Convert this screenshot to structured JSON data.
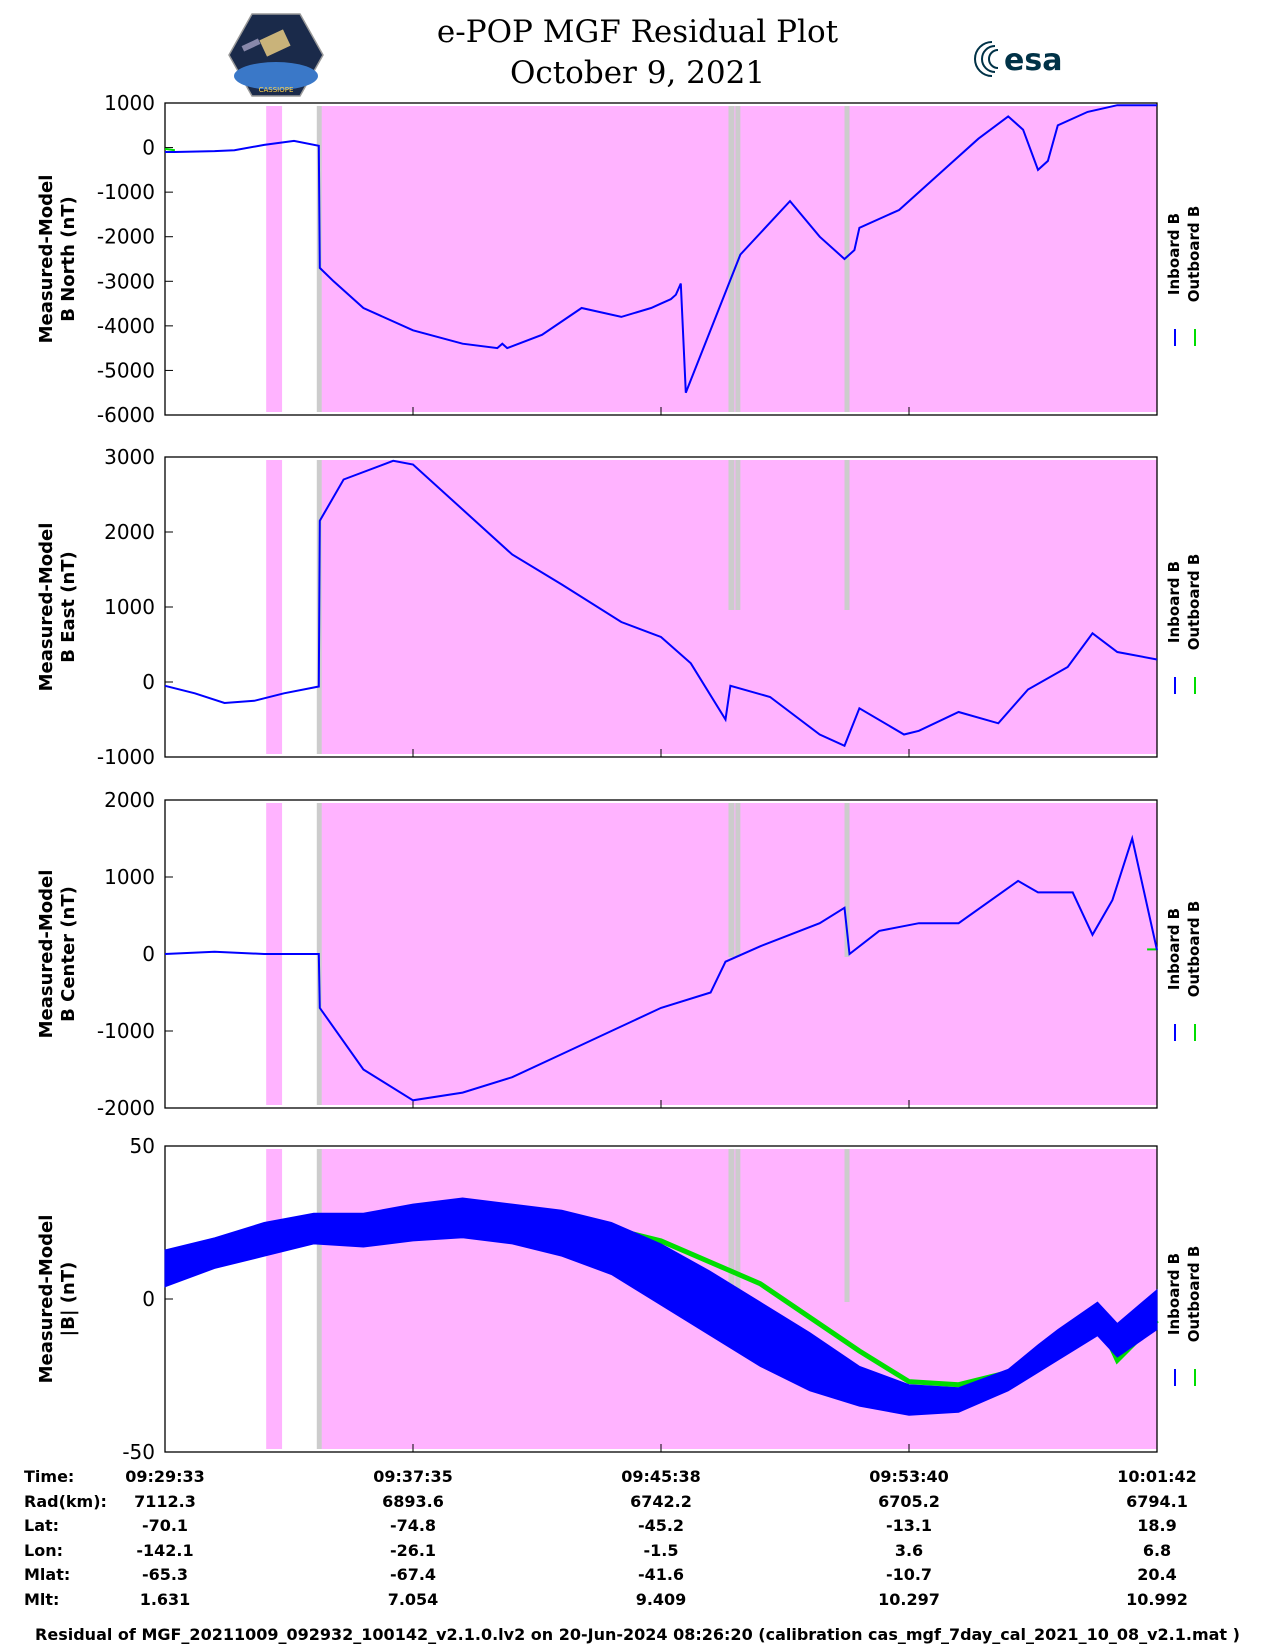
{
  "header": {
    "title_line1": "e-POP MGF Residual Plot",
    "title_line2": "October 9, 2021",
    "logo_left_text": "CASSIOPE",
    "logo_right_text": "esa"
  },
  "colors": {
    "inboard": "#0000ff",
    "outboard": "#00dd00",
    "background_shade": "#ffb3ff",
    "gap_shade": "#cccccc"
  },
  "chart_data": [
    {
      "type": "line",
      "ylabel": [
        "Measured-Model",
        "B North (nT)"
      ],
      "ylim": [
        -6000,
        1000
      ],
      "yticks": [
        "1000",
        "0",
        "-1000",
        "-2000",
        "-3000",
        "-4000",
        "-5000",
        "-6000"
      ],
      "ytick_values": [
        1000,
        0,
        -1000,
        -2000,
        -3000,
        -4000,
        -5000,
        -6000
      ],
      "legend": [
        "Inboard B",
        "Outboard B"
      ],
      "series": [
        {
          "name": "Inboard B",
          "x": [
            0,
            0.01,
            0.05,
            0.07,
            0.1,
            0.13,
            0.155,
            0.156,
            0.17,
            0.2,
            0.25,
            0.3,
            0.335,
            0.34,
            0.345,
            0.38,
            0.42,
            0.46,
            0.49,
            0.5,
            0.51,
            0.515,
            0.52,
            0.525,
            0.58,
            0.63,
            0.66,
            0.685,
            0.695,
            0.7,
            0.74,
            0.79,
            0.82,
            0.85,
            0.865,
            0.88,
            0.89,
            0.9,
            0.93,
            0.96,
            1.0
          ],
          "values": [
            -100,
            -100,
            -80,
            -60,
            60,
            150,
            40,
            -2700,
            -3000,
            -3600,
            -4100,
            -4400,
            -4500,
            -4400,
            -4500,
            -4200,
            -3600,
            -3800,
            -3600,
            -3500,
            -3400,
            -3300,
            -3050,
            -5500,
            -2400,
            -1200,
            -2000,
            -2500,
            -2300,
            -1800,
            -1400,
            -400,
            200,
            700,
            400,
            -500,
            -300,
            500,
            800,
            950,
            950
          ]
        },
        {
          "name": "Outboard B",
          "x": [
            0,
            0.01
          ],
          "values": [
            -30,
            -60
          ]
        }
      ]
    },
    {
      "type": "line",
      "ylabel": [
        "Measured-Model",
        "B East (nT)"
      ],
      "ylim": [
        -1000,
        3000
      ],
      "yticks": [
        "3000",
        "2000",
        "1000",
        "0",
        "-1000"
      ],
      "ytick_values": [
        3000,
        2000,
        1000,
        0,
        -1000
      ],
      "legend": [
        "Inboard B",
        "Outboard B"
      ],
      "series": [
        {
          "name": "Inboard B",
          "x": [
            0,
            0.03,
            0.06,
            0.09,
            0.12,
            0.155,
            0.156,
            0.18,
            0.23,
            0.25,
            0.3,
            0.35,
            0.4,
            0.46,
            0.5,
            0.53,
            0.565,
            0.57,
            0.61,
            0.66,
            0.685,
            0.7,
            0.745,
            0.76,
            0.8,
            0.84,
            0.87,
            0.91,
            0.935,
            0.96,
            1.0
          ],
          "values": [
            -50,
            -150,
            -280,
            -250,
            -150,
            -60,
            2150,
            2700,
            2950,
            2900,
            2300,
            1700,
            1300,
            800,
            600,
            250,
            -500,
            -50,
            -200,
            -700,
            -850,
            -350,
            -700,
            -650,
            -400,
            -550,
            -100,
            200,
            650,
            400,
            300
          ]
        },
        {
          "name": "Outboard B",
          "x": [
            0.0
          ],
          "values": [
            -50
          ]
        }
      ]
    },
    {
      "type": "line",
      "ylabel": [
        "Measured-Model",
        "B Center (nT)"
      ],
      "ylim": [
        -2000,
        2000
      ],
      "yticks": [
        "2000",
        "1000",
        "0",
        "-1000",
        "-2000"
      ],
      "ytick_values": [
        2000,
        1000,
        0,
        -1000,
        -2000
      ],
      "legend": [
        "Inboard B",
        "Outboard B"
      ],
      "series": [
        {
          "name": "Inboard B",
          "x": [
            0,
            0.05,
            0.1,
            0.155,
            0.156,
            0.2,
            0.25,
            0.3,
            0.35,
            0.4,
            0.45,
            0.5,
            0.55,
            0.565,
            0.6,
            0.66,
            0.685,
            0.69,
            0.72,
            0.76,
            0.8,
            0.86,
            0.88,
            0.915,
            0.935,
            0.955,
            0.975,
            1.0
          ],
          "values": [
            0,
            30,
            0,
            0,
            -700,
            -1500,
            -1900,
            -1800,
            -1600,
            -1300,
            -1000,
            -700,
            -500,
            -100,
            100,
            400,
            600,
            0,
            300,
            400,
            400,
            950,
            800,
            800,
            250,
            700,
            1500,
            50
          ]
        },
        {
          "name": "Outboard B",
          "x": [
            0.99,
            1.0
          ],
          "values": [
            60,
            60
          ]
        }
      ]
    },
    {
      "type": "area",
      "ylabel": [
        "Measured-Model",
        "|B| (nT)"
      ],
      "ylim": [
        -50,
        50
      ],
      "yticks": [
        "50",
        "0",
        "-50"
      ],
      "ytick_values": [
        50,
        0,
        -50
      ],
      "legend": [
        "Inboard B",
        "Outboard B"
      ],
      "series": [
        {
          "name": "Inboard B",
          "x": [
            0,
            0.05,
            0.1,
            0.15,
            0.2,
            0.25,
            0.3,
            0.35,
            0.4,
            0.45,
            0.5,
            0.55,
            0.6,
            0.65,
            0.7,
            0.75,
            0.8,
            0.85,
            0.88,
            0.9,
            0.94,
            0.96,
            1.0
          ],
          "upper": [
            16,
            20,
            25,
            28,
            28,
            31,
            33,
            31,
            29,
            25,
            18,
            9,
            -1,
            -11,
            -22,
            -28,
            -29,
            -23,
            -15,
            -10,
            -1,
            -8,
            3
          ],
          "lower": [
            4,
            10,
            14,
            18,
            17,
            19,
            20,
            18,
            14,
            8,
            -2,
            -12,
            -22,
            -30,
            -35,
            -38,
            -37,
            -30,
            -24,
            -20,
            -12,
            -19,
            -10
          ]
        },
        {
          "name": "Outboard B",
          "x": [
            0.4,
            0.5,
            0.6,
            0.7,
            0.75,
            0.8,
            0.85,
            0.9,
            0.94,
            0.96,
            1.0
          ],
          "upper": [
            27,
            19,
            5,
            -17,
            -27,
            -28,
            -24,
            -13,
            -6,
            -20,
            -7
          ],
          "lower": [
            27,
            19,
            5,
            -17,
            -27,
            -28,
            -24,
            -13,
            -6,
            -20,
            -7
          ]
        }
      ]
    }
  ],
  "shading": {
    "pink_intervals": [
      [
        0.102,
        0.118
      ],
      [
        0.155,
        1.0
      ]
    ],
    "gray_intervals": [
      [
        0.153,
        0.158
      ],
      [
        0.568,
        0.574
      ],
      [
        0.575,
        0.58
      ],
      [
        0.685,
        0.69
      ]
    ]
  },
  "ephemeris": {
    "labels": [
      "Time:",
      "Rad(km):",
      "Lat:",
      "Lon:",
      "Mlat:",
      "Mlt:"
    ],
    "columns": [
      {
        "Time": "09:29:33",
        "Rad": "7112.3",
        "Lat": "-70.1",
        "Lon": "-142.1",
        "Mlat": "-65.3",
        "Mlt": "1.631"
      },
      {
        "Time": "09:37:35",
        "Rad": "6893.6",
        "Lat": "-74.8",
        "Lon": "-26.1",
        "Mlat": "-67.4",
        "Mlt": "7.054"
      },
      {
        "Time": "09:45:38",
        "Rad": "6742.2",
        "Lat": "-45.2",
        "Lon": "-1.5",
        "Mlat": "-41.6",
        "Mlt": "9.409"
      },
      {
        "Time": "09:53:40",
        "Rad": "6705.2",
        "Lat": "-13.1",
        "Lon": "3.6",
        "Mlat": "-10.7",
        "Mlt": "10.297"
      },
      {
        "Time": "10:01:42",
        "Rad": "6794.1",
        "Lat": "18.9",
        "Lon": "6.8",
        "Mlat": "20.4",
        "Mlt": "10.992"
      }
    ]
  },
  "footer": "Residual of MGF_20211009_092932_100142_v2.1.0.lv2 on 20-Jun-2024 08:26:20 (calibration cas_mgf_7day_cal_2021_10_08_v2.1.mat )"
}
